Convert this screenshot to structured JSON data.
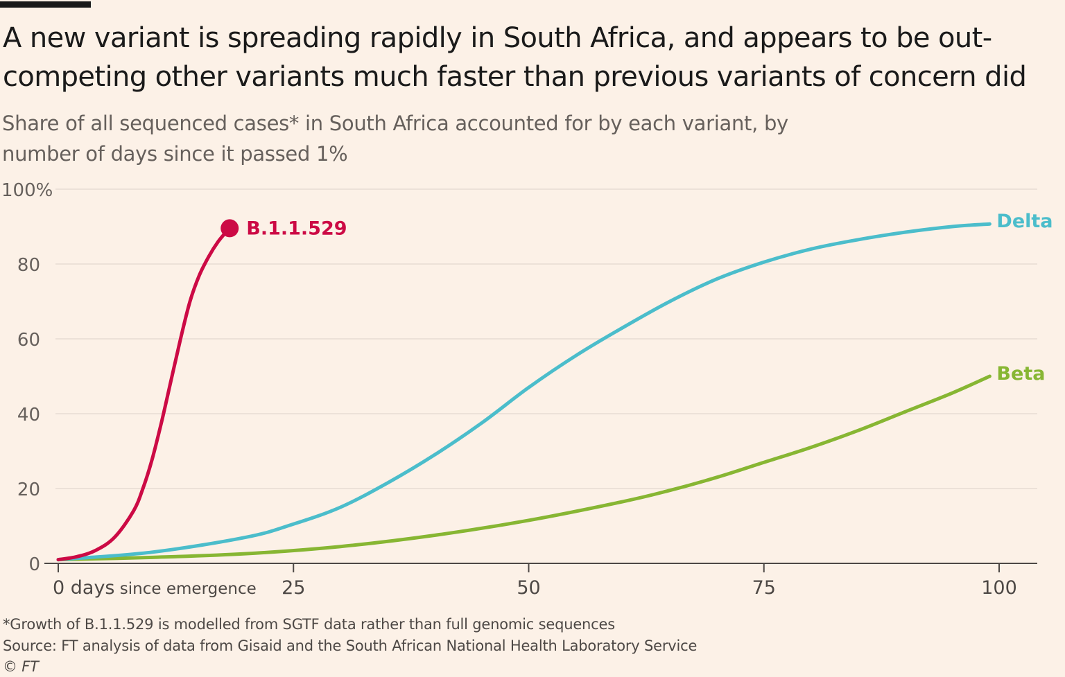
{
  "title": "A new variant is spreading rapidly in South Africa, and appears to be out-competing other variants much faster than previous variants of concern did",
  "subtitle": "Share of all sequenced cases* in South Africa accounted for by each variant, by number of days since it passed 1%",
  "footnote": "*Growth of B.1.1.529 is modelled from SGTF data rather than full genomic sequences",
  "source": "Source: FT analysis of data from Gisaid and the South African National Health Laboratory Service",
  "credit": "© FT",
  "colors": {
    "background": "#fcf1e7",
    "b11529": "#cc0a45",
    "delta": "#4bbdcb",
    "beta": "#87b633",
    "grid": "#e6dcd3",
    "axis": "#4d4845"
  },
  "chart_data": {
    "type": "line",
    "xlabel": "",
    "ylabel": "",
    "xlim": [
      0,
      104
    ],
    "ylim": [
      0,
      100
    ],
    "x_ticks": [
      {
        "value": 0,
        "label": "0 days",
        "suffix": " since emergence"
      },
      {
        "value": 25,
        "label": "25"
      },
      {
        "value": 50,
        "label": "50"
      },
      {
        "value": 75,
        "label": "75"
      },
      {
        "value": 100,
        "label": "100"
      }
    ],
    "y_ticks": [
      {
        "value": 0,
        "label": "0"
      },
      {
        "value": 20,
        "label": "20"
      },
      {
        "value": 40,
        "label": "40"
      },
      {
        "value": 60,
        "label": "60"
      },
      {
        "value": 80,
        "label": "80"
      },
      {
        "value": 100,
        "label": "100%"
      }
    ],
    "grid": true,
    "series": [
      {
        "name": "B.1.1.529",
        "color": "#cc0a45",
        "end_marker": true,
        "x": [
          0,
          2,
          4,
          6,
          8,
          9,
          10,
          11,
          12,
          13,
          14,
          15,
          16,
          17,
          18
        ],
        "y": [
          1,
          1.8,
          3.5,
          7,
          14,
          20,
          28,
          38,
          49,
          60,
          70,
          77,
          82,
          86,
          89
        ]
      },
      {
        "name": "Delta",
        "color": "#4bbdcb",
        "x": [
          0,
          10,
          20,
          25,
          30,
          35,
          40,
          45,
          50,
          55,
          60,
          65,
          70,
          75,
          80,
          85,
          90,
          95,
          99
        ],
        "y": [
          1,
          3,
          7,
          10.5,
          15,
          21.5,
          29,
          37.5,
          47,
          55.5,
          63,
          70,
          76,
          80.5,
          84,
          86.5,
          88.5,
          90,
          90.7
        ]
      },
      {
        "name": "Beta",
        "color": "#87b633",
        "x": [
          0,
          10,
          20,
          30,
          40,
          50,
          60,
          65,
          70,
          75,
          80,
          85,
          90,
          95,
          99
        ],
        "y": [
          1,
          1.6,
          2.6,
          4.5,
          7.5,
          11.5,
          16.5,
          19.5,
          23,
          27,
          31,
          35.5,
          40.5,
          45.5,
          50
        ]
      }
    ]
  }
}
